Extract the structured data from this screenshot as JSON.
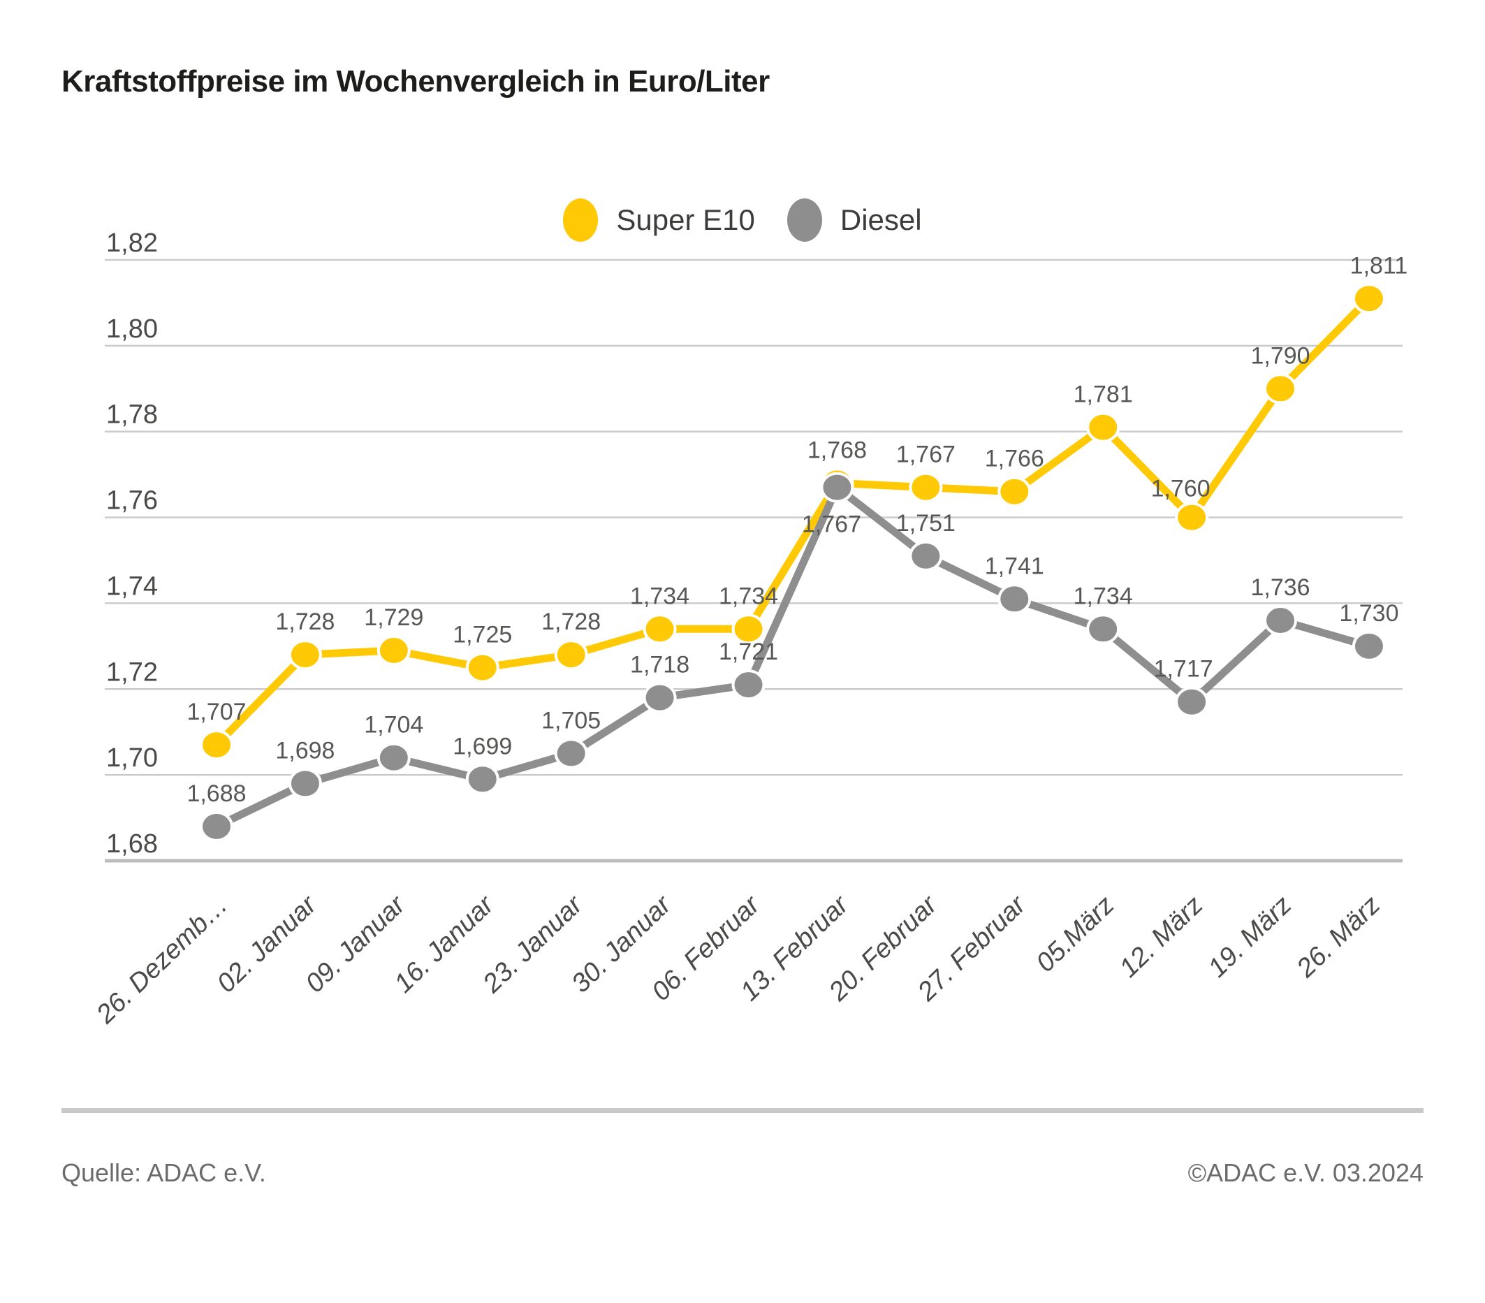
{
  "title": "Kraftstoffpreise im Wochenvergleich in Euro/Liter",
  "legend": {
    "items": [
      {
        "label": "Super E10",
        "color": "#FFC905"
      },
      {
        "label": "Diesel",
        "color": "#8E8E8E"
      }
    ]
  },
  "footer": {
    "source": "Quelle: ADAC e.V.",
    "copyright": "©ADAC e.V. 03.2024"
  },
  "chart_data": {
    "type": "line",
    "title": "Kraftstoffpreise im Wochenvergleich in Euro/Liter",
    "xlabel": "",
    "ylabel": "Euro/Liter",
    "grid": true,
    "legend_position": "top-center",
    "ylim": [
      1.68,
      1.82
    ],
    "categories": [
      "26. Dezemb…",
      "02. Januar",
      "09. Januar",
      "16. Januar",
      "23. Januar",
      "30. Januar",
      "06. Februar",
      "13. Februar",
      "20. Februar",
      "27. Februar",
      "05.März",
      "12. März",
      "19. März",
      "26. März"
    ],
    "yticks": {
      "values": [
        1.82,
        1.8,
        1.78,
        1.76,
        1.74,
        1.72,
        1.7,
        1.68
      ],
      "labels": [
        "1,82",
        "1,80",
        "1,78",
        "1,76",
        "1,74",
        "1,72",
        "1,70",
        "1,68"
      ]
    },
    "series": [
      {
        "name": "Super E10",
        "color": "#FFC905",
        "values": [
          1.707,
          1.728,
          1.729,
          1.725,
          1.728,
          1.734,
          1.734,
          1.768,
          1.767,
          1.766,
          1.781,
          1.76,
          1.79,
          1.811
        ],
        "labels": [
          "1,707",
          "1,728",
          "1,729",
          "1,725",
          "1,728",
          "1,734",
          "1,734",
          "1,768",
          "1,767",
          "1,766",
          "1,781",
          "1,760",
          "1,790",
          "1,811"
        ]
      },
      {
        "name": "Diesel",
        "color": "#8E8E8E",
        "values": [
          1.688,
          1.698,
          1.704,
          1.699,
          1.705,
          1.718,
          1.721,
          1.767,
          1.751,
          1.741,
          1.734,
          1.717,
          1.736,
          1.73
        ],
        "labels": [
          "1,688",
          "1,698",
          "1,704",
          "1,699",
          "1,705",
          "1,718",
          "1,721",
          "1,767",
          "1,751",
          "1,741",
          "1,734",
          "1,717",
          "1,736",
          "1,730"
        ]
      }
    ]
  }
}
